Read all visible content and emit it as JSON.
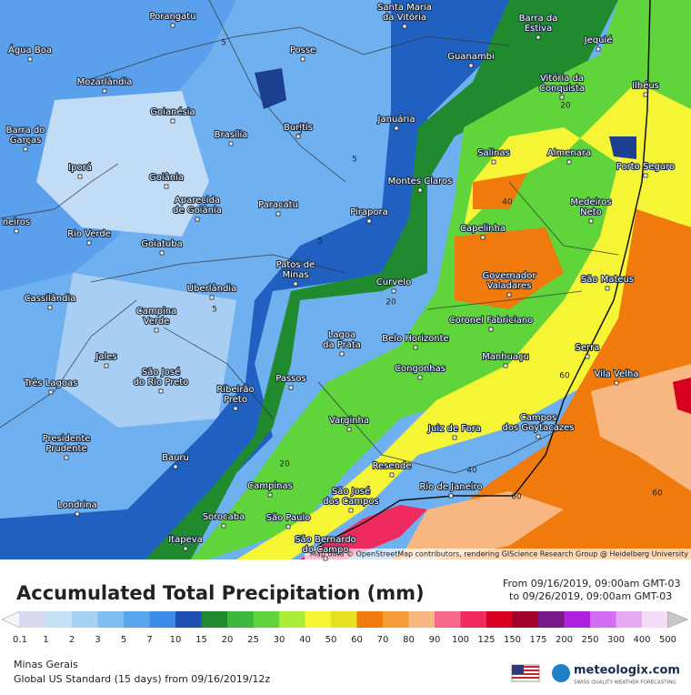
{
  "map": {
    "attribution": "Map data © OpenStreetMap contributors, rendering GIScience Research Group @ Heidelberg University",
    "cities": [
      {
        "lines": [
          "Porangatu"
        ]
      },
      {
        "lines": [
          "Santa Maria",
          "da Vitória"
        ]
      },
      {
        "lines": [
          "Barra da",
          "Estiva"
        ]
      },
      {
        "lines": [
          "Jequié"
        ]
      },
      {
        "lines": [
          "Água Boa"
        ]
      },
      {
        "lines": [
          "Posse"
        ]
      },
      {
        "lines": [
          "Guanambi"
        ]
      },
      {
        "lines": [
          "Vitória da",
          "Conquista"
        ]
      },
      {
        "lines": [
          "Mozarlândia"
        ]
      },
      {
        "lines": [
          "Ilhéus"
        ]
      },
      {
        "lines": [
          "Goianésia"
        ]
      },
      {
        "lines": [
          "Januária"
        ]
      },
      {
        "lines": [
          "Barra do",
          "Garças"
        ]
      },
      {
        "lines": [
          "Brasília"
        ]
      },
      {
        "lines": [
          "Buritis"
        ]
      },
      {
        "lines": [
          "Salinas"
        ]
      },
      {
        "lines": [
          "Almenara"
        ]
      },
      {
        "lines": [
          "Iporá"
        ]
      },
      {
        "lines": [
          "Goiânia"
        ]
      },
      {
        "lines": [
          "Porto Seguro"
        ]
      },
      {
        "lines": [
          "Montes Claros"
        ]
      },
      {
        "lines": [
          "Aparecida",
          "de Goiânia"
        ]
      },
      {
        "lines": [
          "Paracatu"
        ]
      },
      {
        "lines": [
          "Pirapora"
        ]
      },
      {
        "lines": [
          "Medeiros",
          "Neto"
        ]
      },
      {
        "lines": [
          "neiros"
        ]
      },
      {
        "lines": [
          "Capelinha"
        ]
      },
      {
        "lines": [
          "Rio Verde"
        ]
      },
      {
        "lines": [
          "Goiatuba"
        ]
      },
      {
        "lines": [
          "Patos de",
          "Minas"
        ]
      },
      {
        "lines": [
          "Governador",
          "Valadares"
        ]
      },
      {
        "lines": [
          "São Mateus"
        ]
      },
      {
        "lines": [
          "Curvelo"
        ]
      },
      {
        "lines": [
          "Uberlândia"
        ]
      },
      {
        "lines": [
          "Cassilândia"
        ]
      },
      {
        "lines": [
          "Campina",
          "Verde"
        ]
      },
      {
        "lines": [
          "Coronel Fabriciano"
        ]
      },
      {
        "lines": [
          "Lagoa",
          "da Prata"
        ]
      },
      {
        "lines": [
          "Belo Horizonte"
        ]
      },
      {
        "lines": [
          "Serra"
        ]
      },
      {
        "lines": [
          "Manhuaçu"
        ]
      },
      {
        "lines": [
          "Jales"
        ]
      },
      {
        "lines": [
          "Congonhas"
        ]
      },
      {
        "lines": [
          "Vila Velha"
        ]
      },
      {
        "lines": [
          "São José",
          "do Rio Preto"
        ]
      },
      {
        "lines": [
          "Passos"
        ]
      },
      {
        "lines": [
          "Três Lagoas"
        ]
      },
      {
        "lines": [
          "Ribeirão",
          "Preto"
        ]
      },
      {
        "lines": [
          "Campos",
          "dos Goytacazes"
        ]
      },
      {
        "lines": [
          "Varginha"
        ]
      },
      {
        "lines": [
          "Juiz de Fora"
        ]
      },
      {
        "lines": [
          "Presidente",
          "Prudente"
        ]
      },
      {
        "lines": [
          "Bauru"
        ]
      },
      {
        "lines": [
          "Resende"
        ]
      },
      {
        "lines": [
          "Campinas"
        ]
      },
      {
        "lines": [
          "Rio de Janeiro"
        ]
      },
      {
        "lines": [
          "São José",
          "dos Campos"
        ]
      },
      {
        "lines": [
          "Londrina"
        ]
      },
      {
        "lines": [
          "Sorocaba"
        ]
      },
      {
        "lines": [
          "São Paulo"
        ]
      },
      {
        "lines": [
          "Itapeva"
        ]
      },
      {
        "lines": [
          "São Bernardo",
          "do Campo"
        ]
      }
    ],
    "contour_labels": [
      5,
      5,
      5,
      5,
      5,
      20,
      40,
      20,
      60,
      20,
      40,
      60,
      60
    ]
  },
  "legend": {
    "title": "Accumulated Total Precipitation (mm)",
    "from": "From 09/16/2019, 09:00am GMT-03",
    "to": "to 09/26/2019, 09:00am GMT-03",
    "ticks": [
      0.1,
      1,
      2,
      3,
      5,
      7,
      10,
      15,
      20,
      25,
      30,
      40,
      50,
      60,
      70,
      80,
      90,
      100,
      125,
      150,
      175,
      200,
      250,
      300,
      400,
      500
    ],
    "colors": [
      "#f4f4fb",
      "#d9d9f0",
      "#c6e2f7",
      "#a8d2f5",
      "#80bdf2",
      "#5aa5ef",
      "#3a8ce8",
      "#1c4fb0",
      "#1f8a2e",
      "#3cb83c",
      "#5fd43b",
      "#a9ec3a",
      "#f5f535",
      "#e5e020",
      "#f07a0c",
      "#f59b38",
      "#f8b780",
      "#f56a8a",
      "#ee2a5e",
      "#d80021",
      "#a0002a",
      "#7a1a8a",
      "#b020e0",
      "#d36cf0",
      "#e7aaf5",
      "#f5dcf8",
      "#c8c8c8"
    ]
  },
  "footer": {
    "region": "Minas Gerais",
    "model": "Global US Standard (15 days) from 09/16/2019/12z",
    "brand": "meteologix.com",
    "tagline": "SWISS QUALITY WEATHER FORECASTING"
  }
}
